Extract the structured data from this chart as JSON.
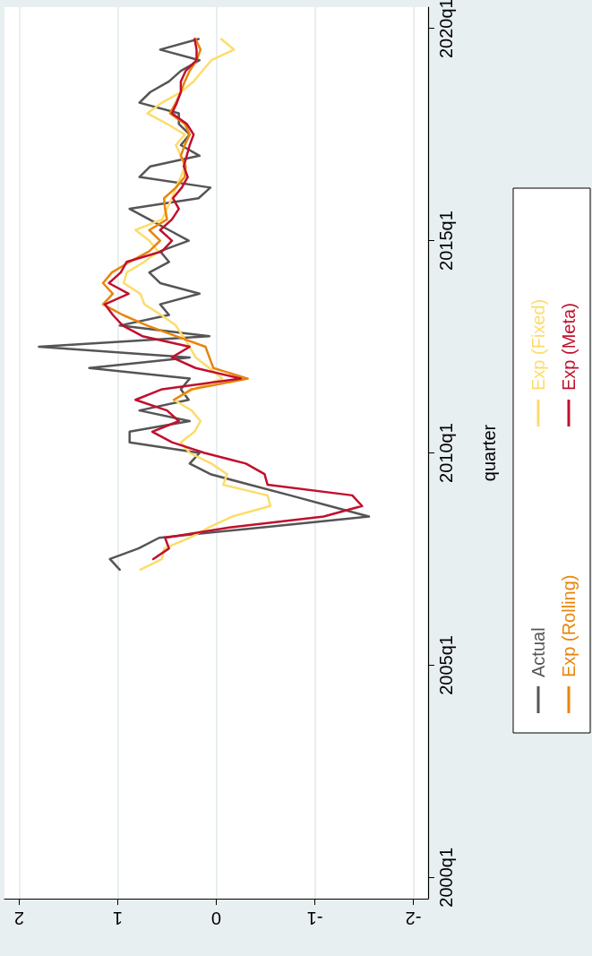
{
  "chart_data": {
    "type": "line",
    "orientation": "horizontal",
    "ylabel": "quarter",
    "categories": [
      null,
      null,
      "2020q1",
      null,
      null,
      null,
      null,
      null,
      null,
      null,
      null,
      null,
      null,
      null,
      null,
      null,
      null,
      null,
      null,
      null,
      null,
      null,
      "2015q1",
      null,
      null,
      null,
      null,
      null,
      null,
      null,
      null,
      null,
      null,
      null,
      null,
      null,
      null,
      null,
      null,
      null,
      null,
      null,
      "2010q1",
      null,
      null,
      null,
      null,
      null,
      null,
      null,
      null,
      null,
      null,
      null,
      null,
      null,
      null,
      null,
      null,
      null,
      null,
      null,
      "2005q1",
      null,
      null,
      null,
      null,
      null,
      null,
      null,
      null,
      null,
      null,
      null,
      null,
      null,
      null,
      null,
      null,
      null,
      null,
      null,
      "2000q1",
      null,
      null
    ],
    "series": [
      {
        "name": "Actual",
        "color": "#555555",
        "values": [
          null,
          null,
          null,
          0.18,
          0.57,
          0.17,
          0.36,
          0.48,
          0.67,
          0.78,
          0.38,
          0.38,
          0.27,
          0.36,
          0.17,
          0.67,
          0.78,
          0.06,
          0.18,
          0.88,
          0.68,
          0.48,
          0.28,
          0.57,
          0.48,
          0.68,
          0.57,
          0.17,
          0.57,
          0.48,
          0.98,
          0.07,
          1.8,
          0.27,
          1.29,
          0.27,
          0.36,
          0.28,
          0.78,
          0.27,
          0.88,
          0.88,
          0.17,
          0.27,
          0.06,
          -0.34,
          -0.75,
          -1.15,
          -1.55,
          -0.48,
          0.58,
          0.79,
          1.08,
          0.98,
          null,
          null,
          null,
          null,
          null,
          null,
          null,
          null,
          null,
          null,
          null,
          null,
          null,
          null,
          null,
          null,
          null,
          null,
          null,
          null,
          null,
          null,
          null,
          null,
          null,
          null,
          null,
          null,
          null,
          null,
          null
        ]
      },
      {
        "name": "Exp (Fixed)",
        "color": "#fddc6c",
        "values": [
          null,
          null,
          null,
          -0.05,
          -0.18,
          0.05,
          0.14,
          0.23,
          0.36,
          0.55,
          0.7,
          0.5,
          0.32,
          0.41,
          0.36,
          0.32,
          0.36,
          0.41,
          0.45,
          0.5,
          0.55,
          0.82,
          0.68,
          0.59,
          0.73,
          0.91,
          0.94,
          0.77,
          0.73,
          0.56,
          0.41,
          0.34,
          0.27,
          0.21,
          0.07,
          -0.06,
          0.23,
          0.43,
          0.25,
          0.16,
          0.22,
          0.36,
          0.27,
          0.05,
          -0.11,
          -0.07,
          -0.52,
          -0.55,
          -0.16,
          0.07,
          0.27,
          0.53,
          0.55,
          0.77,
          null,
          null,
          null,
          null,
          null,
          null,
          null,
          null,
          null,
          null,
          null,
          null,
          null,
          null,
          null,
          null,
          null,
          null,
          null,
          null,
          null,
          null,
          null,
          null,
          null,
          null,
          null,
          null,
          null,
          null,
          null
        ]
      },
      {
        "name": "Exp (Rolling)",
        "color": "#e8850c",
        "values": [
          null,
          null,
          null,
          0.21,
          0.16,
          0.2,
          0.27,
          0.32,
          0.36,
          0.41,
          0.47,
          0.32,
          0.27,
          0.32,
          0.36,
          0.31,
          0.32,
          0.41,
          0.53,
          0.52,
          0.5,
          0.68,
          0.57,
          0.68,
          0.88,
          1.06,
          1.15,
          1.05,
          1.15,
          0.95,
          0.7,
          0.41,
          0.11,
          0.07,
          0.03,
          -0.32,
          0.25,
          0.43,
          null,
          null,
          null,
          null,
          null,
          null,
          null,
          null,
          null,
          null,
          null,
          null,
          null,
          null,
          null,
          null,
          null,
          null,
          null,
          null,
          null,
          null,
          null,
          null,
          null,
          null,
          null,
          null,
          null,
          null,
          null,
          null,
          null,
          null,
          null,
          null,
          null,
          null,
          null,
          null,
          null,
          null,
          null,
          null,
          null,
          null,
          null
        ]
      },
      {
        "name": "Exp (Meta)",
        "color": "#c0102e",
        "values": [
          null,
          null,
          null,
          0.22,
          0.2,
          0.2,
          0.31,
          0.36,
          0.36,
          0.4,
          0.45,
          0.3,
          0.23,
          0.27,
          0.3,
          0.33,
          0.29,
          0.35,
          0.44,
          0.38,
          0.45,
          0.57,
          0.45,
          0.55,
          0.91,
          0.97,
          1.09,
          0.89,
          1.13,
          1.05,
          0.95,
          0.75,
          0.27,
          0.45,
          0.21,
          -0.25,
          0.55,
          0.82,
          0.5,
          0.38,
          0.65,
          0.45,
          0.12,
          -0.3,
          -0.49,
          -0.52,
          -1.38,
          -1.48,
          -1.09,
          -0.15,
          0.52,
          0.48,
          0.64,
          null,
          null,
          null,
          null,
          null,
          null,
          null,
          null,
          null,
          null,
          null,
          null,
          null,
          null,
          null,
          null,
          null,
          null,
          null,
          null,
          null,
          null,
          null,
          null,
          null,
          null,
          null,
          null,
          null,
          null,
          null,
          null
        ]
      }
    ],
    "xlim": [
      2.15,
      -2.15
    ],
    "xticks": [
      -2,
      -1,
      0,
      1,
      2
    ],
    "grid": "x",
    "legend": "right",
    "marker": "none",
    "line_style": "solid"
  }
}
